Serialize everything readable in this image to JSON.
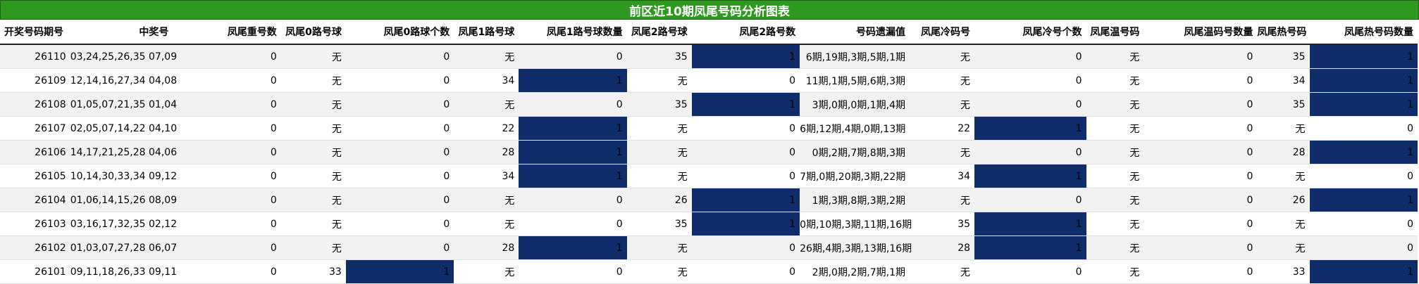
{
  "title": "前区近10期凤尾号码分析图表",
  "colors": {
    "title_bg": "#2e9a1f",
    "highlight_cell": "#0f2c6b",
    "row_alt": "#f2f2f2"
  },
  "columns": [
    "开奖号码期号",
    "中奖号",
    "凤尾重号数",
    "凤尾0路号球",
    "凤尾0路球个数",
    "凤尾1路号球",
    "凤尾1路号球数量",
    "凤尾2路号球",
    "凤尾2路号数",
    "号码遗漏值",
    "凤尾冷码号",
    "凤尾冷号个数",
    "凤尾温号码",
    "凤尾温码号数量",
    "凤尾热号码",
    "凤尾热号码数量"
  ],
  "rows": [
    {
      "cells": [
        "26110",
        "03,24,25,26,35 07,09",
        "0",
        "无",
        "0",
        "无",
        "0",
        "35",
        "1",
        "6期,19期,3期,5期,1期",
        "无",
        "0",
        "无",
        "0",
        "35",
        "1"
      ],
      "highlight": [
        8,
        15
      ]
    },
    {
      "cells": [
        "26109",
        "12,14,16,27,34 04,08",
        "0",
        "无",
        "0",
        "34",
        "1",
        "无",
        "0",
        "11期,1期,5期,6期,3期",
        "无",
        "0",
        "无",
        "0",
        "34",
        "1"
      ],
      "highlight": [
        6,
        15
      ]
    },
    {
      "cells": [
        "26108",
        "01,05,07,21,35 01,04",
        "0",
        "无",
        "0",
        "无",
        "0",
        "35",
        "1",
        "3期,0期,0期,1期,4期",
        "无",
        "0",
        "无",
        "0",
        "35",
        "1"
      ],
      "highlight": [
        8,
        15
      ]
    },
    {
      "cells": [
        "26107",
        "02,05,07,14,22 04,10",
        "0",
        "无",
        "0",
        "22",
        "1",
        "无",
        "0",
        "6期,12期,4期,0期,13期",
        "22",
        "1",
        "无",
        "0",
        "无",
        "0"
      ],
      "highlight": [
        6,
        11
      ]
    },
    {
      "cells": [
        "26106",
        "14,17,21,25,28 04,06",
        "0",
        "无",
        "0",
        "28",
        "1",
        "无",
        "0",
        "0期,2期,7期,8期,3期",
        "无",
        "0",
        "无",
        "0",
        "28",
        "1"
      ],
      "highlight": [
        6,
        15
      ]
    },
    {
      "cells": [
        "26105",
        "10,14,30,33,34 09,12",
        "0",
        "无",
        "0",
        "34",
        "1",
        "无",
        "0",
        "7期,0期,20期,3期,22期",
        "34",
        "1",
        "无",
        "0",
        "无",
        "0"
      ],
      "highlight": [
        6,
        11
      ]
    },
    {
      "cells": [
        "26104",
        "01,06,14,15,26 08,09",
        "0",
        "无",
        "0",
        "无",
        "0",
        "26",
        "1",
        "1期,3期,8期,3期,2期",
        "无",
        "0",
        "无",
        "0",
        "26",
        "1"
      ],
      "highlight": [
        8,
        15
      ]
    },
    {
      "cells": [
        "26103",
        "03,16,17,32,35 02,12",
        "0",
        "无",
        "0",
        "无",
        "0",
        "35",
        "1",
        "0期,10期,3期,11期,16期",
        "35",
        "1",
        "无",
        "0",
        "无",
        "0"
      ],
      "highlight": [
        8,
        11
      ]
    },
    {
      "cells": [
        "26102",
        "01,03,07,27,28 06,07",
        "0",
        "无",
        "0",
        "28",
        "1",
        "无",
        "0",
        "26期,4期,3期,13期,16期",
        "28",
        "1",
        "无",
        "0",
        "无",
        "0"
      ],
      "highlight": [
        6,
        11
      ]
    },
    {
      "cells": [
        "26101",
        "09,11,18,26,33 09,11",
        "0",
        "33",
        "1",
        "无",
        "0",
        "无",
        "0",
        "2期,0期,2期,7期,1期",
        "无",
        "0",
        "无",
        "0",
        "33",
        "1"
      ],
      "highlight": [
        4,
        15
      ]
    }
  ]
}
